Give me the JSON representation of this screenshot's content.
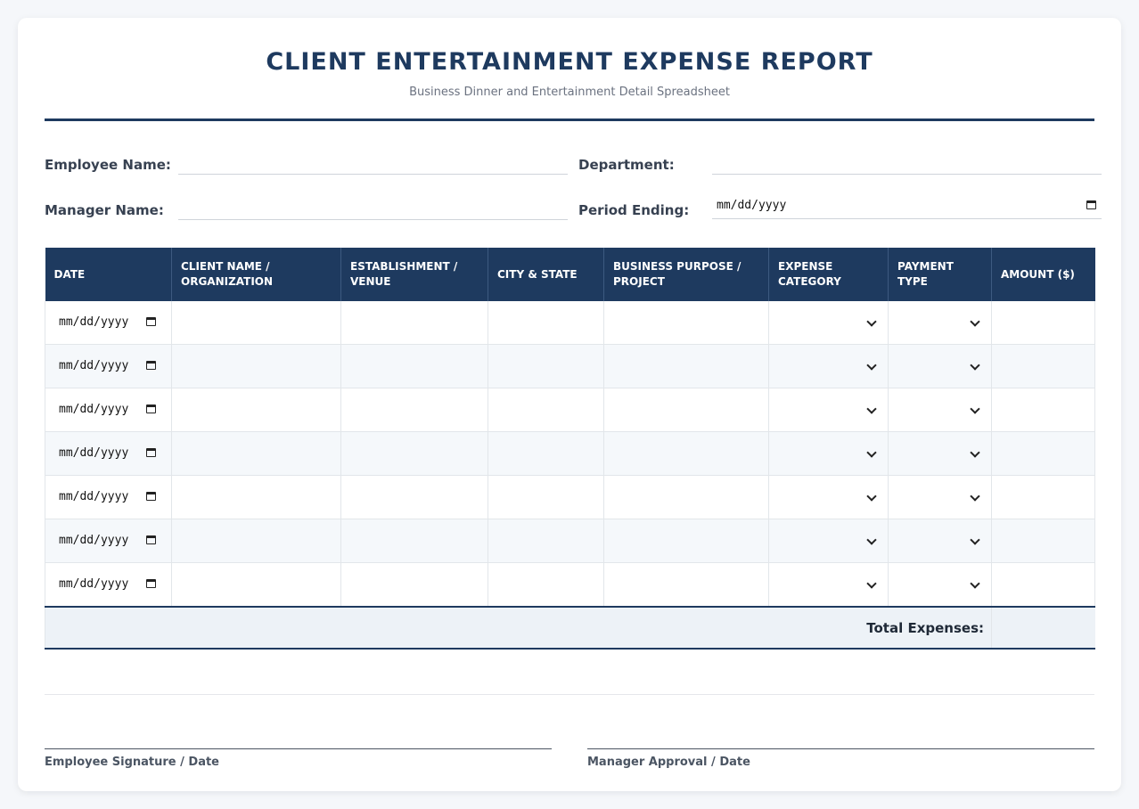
{
  "header": {
    "title": "CLIENT ENTERTAINMENT EXPENSE REPORT",
    "subtitle": "Business Dinner and Entertainment Detail Spreadsheet"
  },
  "info": {
    "employee_name_label": "Employee Name:",
    "employee_name_value": "",
    "department_label": "Department:",
    "department_value": "",
    "manager_name_label": "Manager Name:",
    "manager_name_value": "",
    "period_ending_label": "Period Ending:",
    "period_ending_placeholder": "mm/dd/yyyy"
  },
  "table": {
    "columns": [
      "DATE",
      "CLIENT NAME / ORGANIZATION",
      "ESTABLISHMENT / VENUE",
      "CITY & STATE",
      "BUSINESS PURPOSE / PROJECT",
      "EXPENSE CATEGORY",
      "PAYMENT TYPE",
      "AMOUNT ($)"
    ],
    "date_placeholder": "mm/dd/yyyy",
    "rows": [
      {
        "date": "",
        "client": "",
        "venue": "",
        "city_state": "",
        "purpose": "",
        "category": "",
        "payment": "",
        "amount": ""
      },
      {
        "date": "",
        "client": "",
        "venue": "",
        "city_state": "",
        "purpose": "",
        "category": "",
        "payment": "",
        "amount": ""
      },
      {
        "date": "",
        "client": "",
        "venue": "",
        "city_state": "",
        "purpose": "",
        "category": "",
        "payment": "",
        "amount": ""
      },
      {
        "date": "",
        "client": "",
        "venue": "",
        "city_state": "",
        "purpose": "",
        "category": "",
        "payment": "",
        "amount": ""
      },
      {
        "date": "",
        "client": "",
        "venue": "",
        "city_state": "",
        "purpose": "",
        "category": "",
        "payment": "",
        "amount": ""
      },
      {
        "date": "",
        "client": "",
        "venue": "",
        "city_state": "",
        "purpose": "",
        "category": "",
        "payment": "",
        "amount": ""
      },
      {
        "date": "",
        "client": "",
        "venue": "",
        "city_state": "",
        "purpose": "",
        "category": "",
        "payment": "",
        "amount": ""
      }
    ],
    "total_label": "Total Expenses:",
    "total_value": ""
  },
  "signatures": {
    "employee_label": "Employee Signature / Date",
    "manager_label": "Manager Approval / Date"
  },
  "colors": {
    "primary": "#1e3a5f",
    "row_alt": "#f5f8fb",
    "total_bg": "#edf2f7",
    "page_bg": "#f5f7fa"
  },
  "icons": [
    "calendar-icon",
    "chevron-down-icon"
  ]
}
